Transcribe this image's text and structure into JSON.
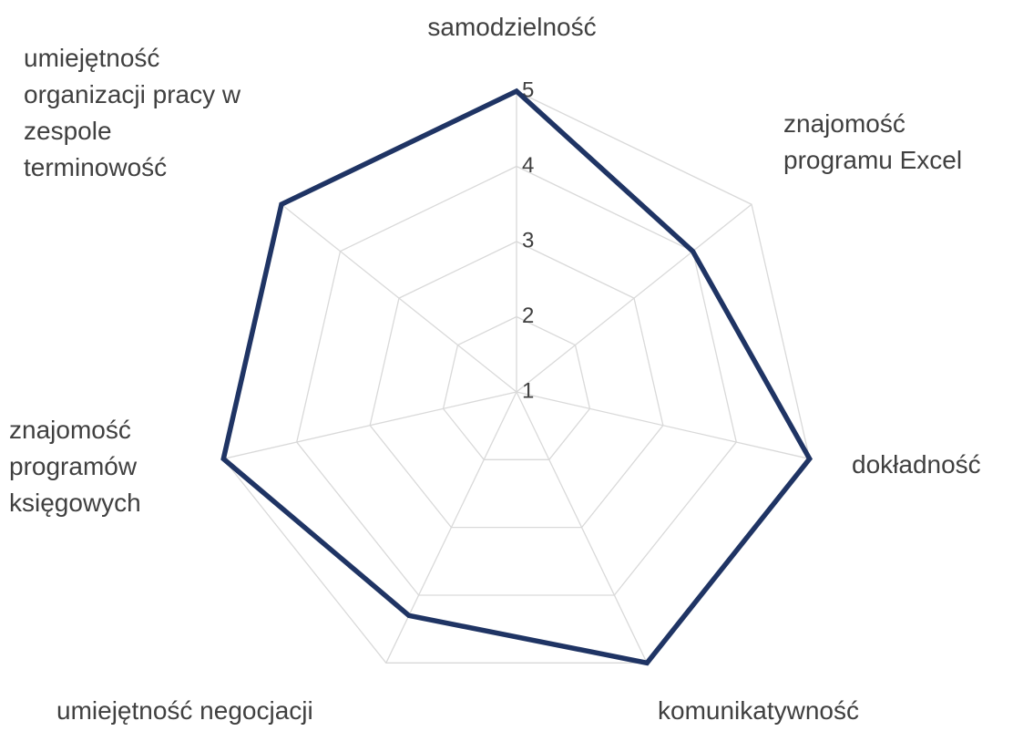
{
  "chart_data": {
    "type": "radar",
    "categories": [
      "samodzielność",
      "znajomość programu Excel",
      "dokładność",
      "komunikatywność",
      "umiejętność negocjacji",
      "znajomość programów księgowych",
      "umiejętność organizacji pracy w zespole terminowość"
    ],
    "values": [
      5,
      4,
      5,
      5,
      4.3,
      5,
      5
    ],
    "color": "#1f3464",
    "ylim": [
      1,
      5
    ],
    "yticks": [
      1,
      2,
      3,
      4,
      5
    ],
    "grid": true
  }
}
